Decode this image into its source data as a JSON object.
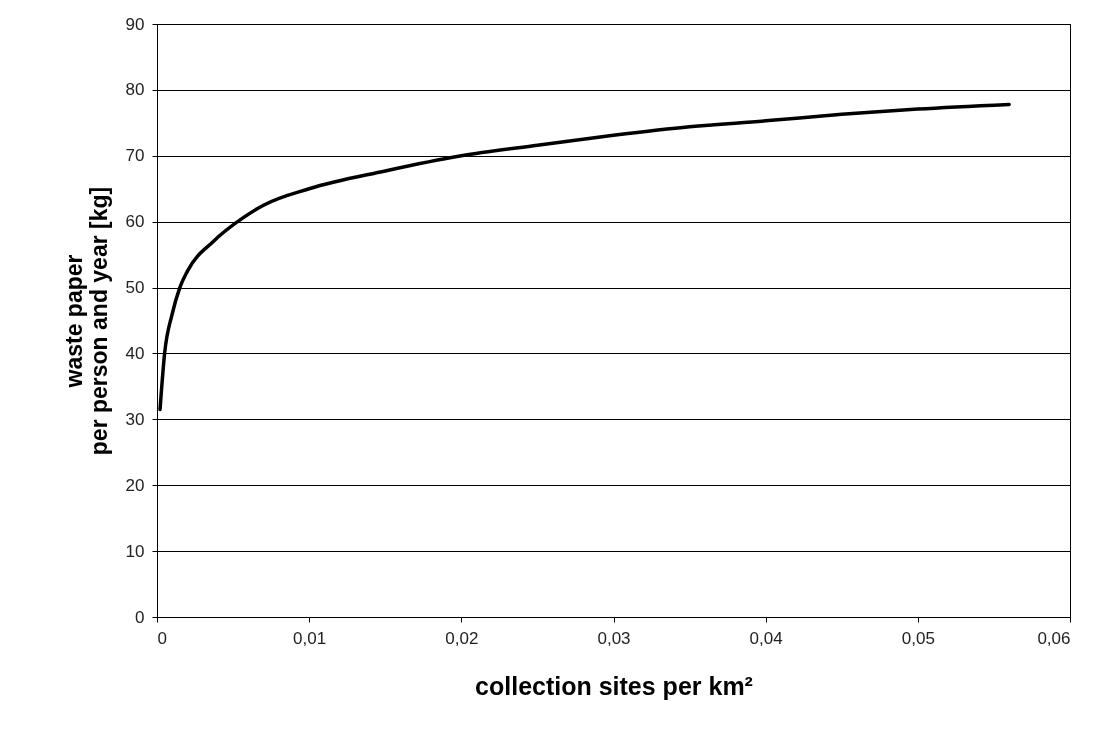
{
  "chart_data": {
    "type": "line",
    "xlabel": "collection sites per km²",
    "ylabel": "waste paper\nper person and year [kg]",
    "x": [
      0.0002,
      0.0005,
      0.001,
      0.0015,
      0.002,
      0.0037,
      0.0056,
      0.007,
      0.01,
      0.015,
      0.02,
      0.025,
      0.03,
      0.035,
      0.04,
      0.045,
      0.05,
      0.056
    ],
    "series": [
      {
        "color": "#000000",
        "values": [
          31.5,
          40,
          46,
          50,
          52.5,
          57,
          60.5,
          62.5,
          65,
          67.7,
          70,
          71.6,
          73.1,
          74.4,
          75.3,
          76.3,
          77.1,
          77.8
        ]
      }
    ],
    "xlim": [
      0,
      0.06
    ],
    "xticks": [
      0,
      {
        "value": 0.01,
        "label": "0,01"
      },
      {
        "value": 0.02,
        "label": "0,02"
      },
      {
        "value": 0.03,
        "label": "0,03"
      },
      {
        "value": 0.04,
        "label": "0,04"
      },
      {
        "value": 0.05,
        "label": "0,05"
      },
      {
        "value": 0.06,
        "label": "0,06"
      }
    ],
    "ylim": [
      0,
      90
    ],
    "yticks": [
      0,
      10,
      20,
      30,
      40,
      50,
      60,
      70,
      80,
      90
    ],
    "grid": "y",
    "legend": false,
    "marker": "none",
    "line_style": "solid"
  }
}
